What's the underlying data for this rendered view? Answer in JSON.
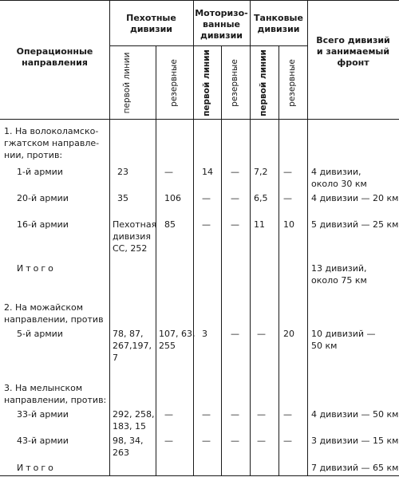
{
  "header": {
    "directions": "Операционные\nнаправления",
    "infantry": "Пехотные\nдивизии",
    "motorized": "Моторизо-\nванные\nдивизии",
    "tank": "Танковые\nдивизии",
    "total": "Всего дивизий\nи занимаемый\nфронт",
    "first_line_2": "первой\nлинии",
    "reserve": "резервные",
    "first_line": "первой линии"
  },
  "section1": {
    "title": "1. На волоколамско-\nгжатском направле-\nнии, против:",
    "rows": [
      {
        "label": "1-й армии",
        "inf_first": "23",
        "inf_res": "—",
        "mot_first": "14",
        "mot_res": "—",
        "tank_first": "7,2",
        "tank_res": "—",
        "total": "4 дивизии,\nоколо 30 км"
      },
      {
        "label": "20-й армии",
        "inf_first": "35",
        "inf_res": "106",
        "mot_first": "—",
        "mot_res": "—",
        "tank_first": "6,5",
        "tank_res": "—",
        "total": "4 дивизии — 20 км"
      },
      {
        "label": "16-й армии",
        "inf_first": "Пехотная\nдивизия\nСС, 252",
        "inf_res": "85",
        "mot_first": "—",
        "mot_res": "—",
        "tank_first": "11",
        "tank_res": "10",
        "total": "5 дивизий — 25 км"
      }
    ],
    "total_label": "Итого",
    "total_value": "13 дивизий,\nоколо 75 км"
  },
  "section2": {
    "title": "2. На можайском\nнаправлении, против",
    "rows": [
      {
        "label": "5-й армии",
        "inf_first": "78, 87,\n267,197,\n7",
        "inf_res": "107, 63,\n255",
        "mot_first": "3",
        "mot_res": "—",
        "tank_first": "—",
        "tank_res": "20",
        "total": "10 дивизий —\n50 км"
      }
    ]
  },
  "section3": {
    "title": "3. На мелынском\nнаправлении, против:",
    "rows": [
      {
        "label": "33-й армии",
        "inf_first": "292, 258,\n183, 15",
        "inf_res": "—",
        "mot_first": "—",
        "mot_res": "—",
        "tank_first": "—",
        "tank_res": "—",
        "total": "4 дивизии — 50 км"
      },
      {
        "label": "43-й армии",
        "inf_first": "98, 34,\n263",
        "inf_res": "—",
        "mot_first": "—",
        "mot_res": "—",
        "tank_first": "—",
        "tank_res": "—",
        "total": "3 дивизии — 15 км"
      }
    ],
    "total_label": "Итого",
    "total_value": "7 дивизий — 65 км"
  }
}
